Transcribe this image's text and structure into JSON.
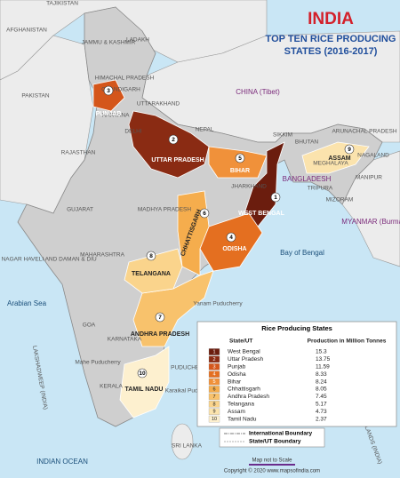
{
  "header": {
    "title": "INDIA",
    "subtitle_line1": "TOP TEN RICE PRODUCING",
    "subtitle_line2": "STATES (2016-2017)"
  },
  "table": {
    "title": "Rice Producing States",
    "columns": [
      "State/UT",
      "Production in Million Tonnes"
    ],
    "rows": [
      [
        1,
        "West Bengal",
        15.3
      ],
      [
        2,
        "Uttar Pradesh",
        13.75
      ],
      [
        3,
        "Punjab",
        11.59
      ],
      [
        4,
        "Odisha",
        8.33
      ],
      [
        5,
        "Bihar",
        8.24
      ],
      [
        6,
        "Chhattisgarh",
        8.05
      ],
      [
        7,
        "Andhra Pradesh",
        7.45
      ],
      [
        8,
        "Telangana",
        5.17
      ],
      [
        9,
        "Assam",
        4.73
      ],
      [
        10,
        "Tamil Nadu",
        2.37
      ]
    ],
    "colors": [
      "#6b1d0e",
      "#8a2b13",
      "#d4561b",
      "#e46f20",
      "#f0913a",
      "#f5ad4d",
      "#f8c26c",
      "#fad48c",
      "#fbe3ad",
      "#fdf0cf"
    ]
  },
  "labels": [
    "TAJIKISTAN",
    "AFGHANISTAN",
    "PAKISTAN",
    "JAMMU & KASHMIR",
    "LADAKH",
    "HIMACHAL PRADESH",
    "CHANDIGARH",
    "UTTARAKHAND",
    "HARYANA",
    "DELHI",
    "RAJASTHAN",
    "CHINA (Tibet)",
    "NEPAL",
    "SIKKIM",
    "BHUTAN",
    "ARUNACHAL PRADESH",
    "BANGLADESH",
    "MEGHALAYA",
    "NAGALAND",
    "MANIPUR",
    "TRIPURA",
    "MIZORAM",
    "MYANMAR (Burma)",
    "JHARKHAND",
    "GUJARAT",
    "MADHYA PRADESH",
    "MAHARASHTRA",
    "DADRA & NAGAR HAVELI AND DAMAN & DIU",
    "Arabian Sea",
    "Bay of Bengal",
    "GOA",
    "KARNATAKA",
    "Yanam Puducherry",
    "PUDUCHERRY",
    "Mahe Puducherry",
    "KERALA",
    "Karaikal Puducherry",
    "LAKSHADWEEP (INDIA)",
    "ANDAMAN AND NICOBAR ISLANDS (INDIA)",
    "SRI LANKA",
    "INDIAN OCEAN"
  ],
  "legend": [
    "International Boundary",
    "State/UT Boundary"
  ],
  "footer": {
    "scale_note": "Map not to Scale",
    "copyright": "Copyright © 2020 www.mapsofindia.com"
  }
}
